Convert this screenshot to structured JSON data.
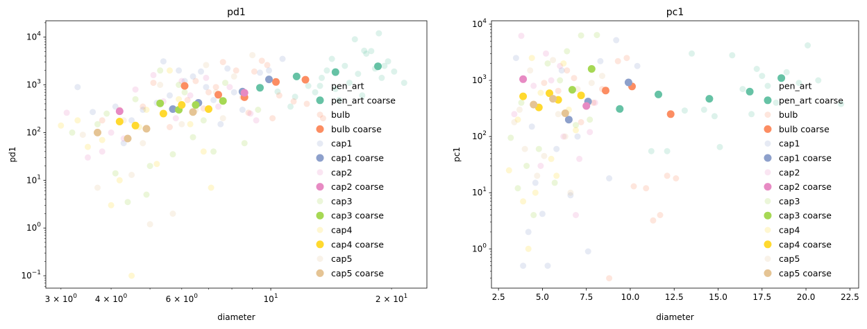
{
  "chart_data": [
    {
      "type": "scatter",
      "title": "pd1",
      "xlabel": "diameter",
      "ylabel": "pd1",
      "xscale": "log",
      "yscale": "log",
      "xlim": [
        2.75,
        24.5
      ],
      "ylim": [
        0.055,
        22000
      ],
      "x_major_ticks": [
        {
          "value": 10,
          "base": "10",
          "exp": "1"
        }
      ],
      "x_minor_ticks": [
        {
          "value": 3,
          "mant": "3",
          "base": "10",
          "exp": "0"
        },
        {
          "value": 4,
          "mant": "4",
          "base": "10",
          "exp": "0"
        },
        {
          "value": 6,
          "mant": "6",
          "base": "10",
          "exp": "0"
        },
        {
          "value": 20,
          "mant": "2",
          "base": "10",
          "exp": "1"
        }
      ],
      "y_ticks": [
        {
          "value": 0.1,
          "base": "10",
          "exp": "−1"
        },
        {
          "value": 1,
          "base": "10",
          "exp": "0"
        },
        {
          "value": 10,
          "base": "10",
          "exp": "1"
        },
        {
          "value": 100,
          "base": "10",
          "exp": "2"
        },
        {
          "value": 1000,
          "base": "10",
          "exp": "3"
        },
        {
          "value": 10000,
          "base": "10",
          "exp": "4"
        }
      ],
      "legend_position": "right",
      "series": [
        {
          "name": "pen_art",
          "color": "#66c2a5",
          "kind": "fine",
          "x": [
            14.2,
            17.1,
            15.3,
            16.5,
            19.6,
            18.2,
            12.4,
            17.8,
            16.2,
            20.3,
            13.4,
            21.5,
            14.8,
            11.5,
            18.6,
            10.4,
            12.9,
            15.7,
            19.2,
            17.3,
            11.2,
            13.8,
            16.9,
            18.9,
            14.5
          ],
          "y": [
            3500,
            5200,
            2500,
            1700,
            3100,
            2200,
            950,
            5100,
            9000,
            1900,
            1400,
            1100,
            480,
            560,
            12000,
            720,
            700,
            1100,
            2500,
            4500,
            350,
            2000,
            600,
            1400,
            820
          ]
        },
        {
          "name": "pen_art coarse",
          "color": "#66c2a5",
          "kind": "coarse",
          "x": [
            9.4,
            11.6,
            14.5,
            18.5
          ],
          "y": [
            870,
            1500,
            1850,
            2450
          ]
        },
        {
          "name": "bulb",
          "color": "#fc8d62",
          "kind": "fine",
          "x": [
            4.8,
            6.5,
            8.2,
            9.5,
            10.5,
            7.3,
            5.6,
            6.2,
            8.8,
            10.1,
            12.3,
            4.2,
            7.0,
            9.1,
            11.4,
            5.1,
            6.8,
            8.5,
            3.8,
            7.6,
            13.5,
            9.8
          ],
          "y": [
            350,
            1200,
            2000,
            3200,
            600,
            900,
            130,
            480,
            260,
            200,
            400,
            300,
            700,
            1900,
            450,
            1100,
            320,
            550,
            180,
            3000,
            200,
            2600
          ]
        },
        {
          "name": "bulb coarse",
          "color": "#fc8d62",
          "kind": "coarse",
          "x": [
            6.1,
            7.4,
            8.6,
            10.3,
            12.2
          ],
          "y": [
            950,
            620,
            550,
            1150,
            1280
          ]
        },
        {
          "name": "cap1",
          "color": "#8da0cb",
          "kind": "fine",
          "x": [
            3.3,
            4.1,
            5.6,
            6.4,
            7.8,
            9.4,
            5.2,
            4.5,
            6.9,
            8.5,
            10.7,
            5.9,
            3.6,
            7.2,
            4.8,
            6.1,
            8.1,
            9.9,
            5.4,
            4.3,
            7.5,
            6.7
          ],
          "y": [
            900,
            350,
            600,
            1500,
            2200,
            1800,
            420,
            180,
            900,
            300,
            3500,
            2000,
            270,
            480,
            300,
            1200,
            700,
            2000,
            3100,
            60,
            150,
            1900
          ]
        },
        {
          "name": "cap1 coarse",
          "color": "#8da0cb",
          "kind": "coarse",
          "x": [
            5.7,
            6.6,
            8.5,
            9.9
          ],
          "y": [
            310,
            420,
            720,
            1300
          ]
        },
        {
          "name": "cap2",
          "color": "#e78ac3",
          "kind": "fine",
          "x": [
            3.1,
            4.0,
            5.1,
            6.3,
            7.4,
            8.9,
            4.6,
            5.8,
            6.9,
            3.5,
            7.9,
            4.3,
            5.4,
            9.2,
            3.8,
            6.0
          ],
          "y": [
            260,
            100,
            1600,
            600,
            350,
            250,
            800,
            200,
            1400,
            30,
            900,
            75,
            450,
            180,
            40,
            1200
          ]
        },
        {
          "name": "cap2 coarse",
          "color": "#e78ac3",
          "kind": "coarse",
          "x": [
            4.2,
            8.6
          ],
          "y": [
            280,
            680
          ]
        },
        {
          "name": "cap3",
          "color": "#a6d854",
          "kind": "fine",
          "x": [
            3.2,
            3.9,
            4.6,
            5.3,
            6.1,
            6.8,
            7.7,
            8.6,
            4.9,
            5.7,
            4.4,
            6.4,
            7.2,
            5.0,
            3.7,
            9.3,
            4.1,
            5.9
          ],
          "y": [
            100,
            250,
            500,
            2000,
            700,
            180,
            1100,
            60,
            5,
            35,
            3.5,
            80,
            40,
            20,
            150,
            300,
            14,
            1000
          ]
        },
        {
          "name": "cap3 coarse",
          "color": "#a6d854",
          "kind": "coarse",
          "x": [
            5.3,
            5.9,
            6.5,
            7.6
          ],
          "y": [
            410,
            300,
            380,
            460
          ]
        },
        {
          "name": "cap4",
          "color": "#ffd92f",
          "kind": "fine",
          "x": [
            3.0,
            3.5,
            4.2,
            4.9,
            5.6,
            6.3,
            7.1,
            4.5,
            5.2,
            3.8,
            6.8,
            4.0,
            5.9,
            4.7,
            5.4,
            3.3
          ],
          "y": [
            140,
            50,
            10,
            300,
            2000,
            150,
            7,
            0.1,
            22,
            70,
            40,
            3,
            500,
            130,
            250,
            180
          ]
        },
        {
          "name": "cap4 coarse",
          "color": "#ffd92f",
          "kind": "coarse",
          "x": [
            4.2,
            4.6,
            5.4,
            6.0,
            7.0
          ],
          "y": [
            170,
            140,
            250,
            380,
            310
          ]
        },
        {
          "name": "cap5",
          "color": "#e5c494",
          "kind": "fine",
          "x": [
            3.4,
            4.3,
            5.0,
            5.7,
            6.5,
            7.3,
            8.1,
            4.8,
            3.7,
            6.0,
            5.3,
            4.5,
            7.6,
            6.9,
            9.0
          ],
          "y": [
            90,
            180,
            1.2,
            2.0,
            300,
            700,
            1500,
            60,
            7,
            150,
            1000,
            13,
            200,
            2600,
            4200
          ]
        },
        {
          "name": "cap5 coarse",
          "color": "#e5c494",
          "kind": "coarse",
          "x": [
            3.7,
            4.4,
            4.9,
            6.4
          ],
          "y": [
            100,
            75,
            120,
            270
          ]
        }
      ]
    },
    {
      "type": "scatter",
      "title": "pc1",
      "xlabel": "diameter",
      "ylabel": "pc1",
      "xscale": "linear",
      "yscale": "log",
      "xlim": [
        2.1,
        23.0
      ],
      "ylim": [
        0.2,
        11500
      ],
      "x_ticks": [
        {
          "value": 2.5,
          "label": "2.5"
        },
        {
          "value": 5.0,
          "label": "5.0"
        },
        {
          "value": 7.5,
          "label": "7.5"
        },
        {
          "value": 10.0,
          "label": "10.0"
        },
        {
          "value": 12.5,
          "label": "12.5"
        },
        {
          "value": 15.0,
          "label": "15.0"
        },
        {
          "value": 17.5,
          "label": "17.5"
        },
        {
          "value": 20.0,
          "label": "20.0"
        },
        {
          "value": 22.5,
          "label": "22.5"
        }
      ],
      "y_ticks": [
        {
          "value": 1,
          "base": "10",
          "exp": "0"
        },
        {
          "value": 10,
          "base": "10",
          "exp": "1"
        },
        {
          "value": 100,
          "base": "10",
          "exp": "2"
        },
        {
          "value": 1000,
          "base": "10",
          "exp": "3"
        },
        {
          "value": 10000,
          "base": "10",
          "exp": "4"
        }
      ],
      "legend_position": "right",
      "series": [
        {
          "name": "pen_art",
          "color": "#66c2a5",
          "kind": "fine",
          "x": [
            13.5,
            15.8,
            17.2,
            18.3,
            19.6,
            20.1,
            22.0,
            14.2,
            16.4,
            17.5,
            12.1,
            18.9,
            15.1,
            11.2,
            16.9,
            20.7,
            14.8,
            13.1
          ],
          "y": [
            3000,
            2800,
            1600,
            400,
            900,
            4200,
            380,
            300,
            700,
            1200,
            55,
            1400,
            65,
            55,
            250,
            1000,
            230,
            290
          ]
        },
        {
          "name": "pen_art coarse",
          "color": "#66c2a5",
          "kind": "coarse",
          "x": [
            9.4,
            11.6,
            14.5,
            16.8,
            18.6
          ],
          "y": [
            310,
            560,
            470,
            630,
            1100
          ]
        },
        {
          "name": "bulb",
          "color": "#fc8d62",
          "kind": "fine",
          "x": [
            5.1,
            6.4,
            7.9,
            9.3,
            10.2,
            11.7,
            12.6,
            8.4,
            6.8,
            10.9,
            9.8,
            7.2,
            11.3,
            5.9,
            12.1,
            8.8
          ],
          "y": [
            900,
            1500,
            400,
            2200,
            13,
            4,
            18,
            700,
            1100,
            12,
            2500,
            180,
            3.2,
            650,
            20,
            0.3
          ]
        },
        {
          "name": "bulb coarse",
          "color": "#fc8d62",
          "kind": "coarse",
          "x": [
            8.6,
            10.1,
            12.3
          ],
          "y": [
            660,
            780,
            250
          ]
        },
        {
          "name": "cap1",
          "color": "#8da0cb",
          "kind": "fine",
          "x": [
            3.5,
            4.2,
            5.3,
            6.1,
            7.0,
            8.3,
            9.2,
            5.8,
            4.6,
            6.6,
            3.9,
            7.6,
            10.4,
            5.0,
            8.8,
            4.4
          ],
          "y": [
            2500,
            2,
            0.5,
            1500,
            100,
            2200,
            5200,
            60,
            15,
            9,
            0.5,
            0.9,
            1800,
            4.2,
            18,
            150
          ]
        },
        {
          "name": "cap1 coarse",
          "color": "#8da0cb",
          "kind": "coarse",
          "x": [
            6.5,
            7.6,
            9.9
          ],
          "y": [
            200,
            420,
            920
          ]
        },
        {
          "name": "cap2",
          "color": "#e78ac3",
          "kind": "fine",
          "x": [
            3.8,
            4.5,
            5.5,
            6.2,
            7.1,
            8.0,
            4.9,
            6.9,
            5.2,
            7.7,
            3.4,
            6.0
          ],
          "y": [
            6200,
            800,
            1000,
            100,
            40,
            400,
            30,
            4,
            3000,
            120,
            250,
            1800
          ]
        },
        {
          "name": "cap2 coarse",
          "color": "#e78ac3",
          "kind": "coarse",
          "x": [
            3.9,
            7.5
          ],
          "y": [
            1050,
            350
          ]
        },
        {
          "name": "cap3",
          "color": "#a6d854",
          "kind": "fine",
          "x": [
            3.2,
            3.8,
            4.5,
            5.3,
            6.0,
            6.9,
            7.2,
            8.1,
            4.1,
            5.7,
            6.4,
            4.8,
            3.6,
            7.7
          ],
          "y": [
            95,
            400,
            4,
            2000,
            1000,
            160,
            6300,
            6400,
            30,
            15,
            3300,
            60,
            12,
            200
          ]
        },
        {
          "name": "cap3 coarse",
          "color": "#a6d854",
          "kind": "coarse",
          "x": [
            6.7,
            7.8
          ],
          "y": [
            680,
            1600
          ]
        },
        {
          "name": "cap4",
          "color": "#ffd92f",
          "kind": "fine",
          "x": [
            3.1,
            3.6,
            4.2,
            4.9,
            5.5,
            6.2,
            6.9,
            4.4,
            5.8,
            3.9,
            6.5,
            4.6
          ],
          "y": [
            25,
            200,
            1.0,
            600,
            40,
            2000,
            130,
            2500,
            20,
            7,
            300,
            10
          ]
        },
        {
          "name": "cap4 coarse",
          "color": "#ffd92f",
          "kind": "coarse",
          "x": [
            3.9,
            4.8,
            5.4,
            5.9,
            7.2
          ],
          "y": [
            520,
            330,
            590,
            450,
            540
          ]
        },
        {
          "name": "cap5",
          "color": "#e5c494",
          "kind": "fine",
          "x": [
            3.4,
            4.0,
            4.7,
            5.6,
            6.3,
            7.0,
            7.8,
            5.1,
            3.7,
            6.6,
            4.3,
            5.9,
            8.4
          ],
          "y": [
            180,
            60,
            20,
            2300,
            100,
            700,
            900,
            45,
            300,
            10,
            1500,
            250,
            1200
          ]
        },
        {
          "name": "cap5 coarse",
          "color": "#e5c494",
          "kind": "coarse",
          "x": [
            4.5,
            5.6,
            6.3
          ],
          "y": [
            370,
            470,
            260
          ]
        }
      ]
    }
  ]
}
